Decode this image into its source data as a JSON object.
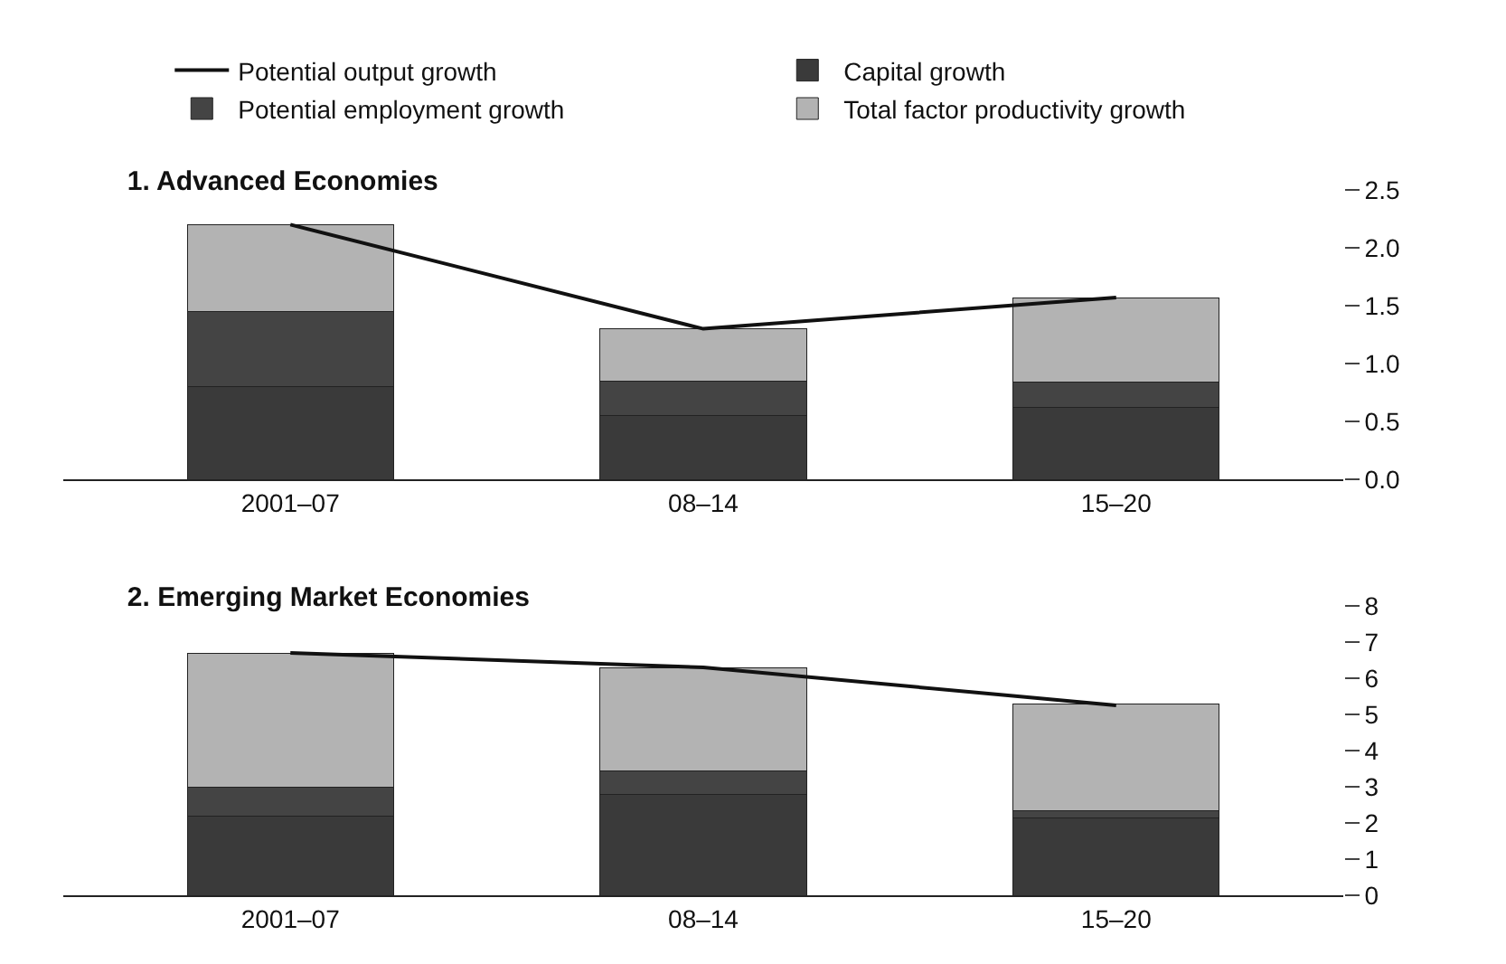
{
  "chart_data": [
    {
      "type": "bar",
      "title": "1. Advanced Economies",
      "stacked": true,
      "legend": "top",
      "categories": [
        "2001–07",
        "08–14",
        "15–20"
      ],
      "ylim": [
        0,
        2.5
      ],
      "yticks": [
        {
          "value": 0,
          "label": "0.0"
        },
        0.5,
        {
          "value": 1,
          "label": "1.0"
        },
        1.5,
        {
          "value": 2,
          "label": "2.0"
        },
        2.5
      ],
      "series": [
        {
          "name": "Potential output growth",
          "type": "line",
          "color": "#111111",
          "values": [
            2.2,
            1.3,
            1.57
          ]
        },
        {
          "name": "Capital growth",
          "color": "#3a3a3a",
          "values": [
            0.8,
            0.55,
            0.62
          ]
        },
        {
          "name": "Potential employment growth",
          "color": "#444444",
          "values": [
            0.65,
            0.3,
            0.22
          ]
        },
        {
          "name": "Total factor productivity growth",
          "color": "#b3b3b3",
          "values": [
            0.75,
            0.45,
            0.73
          ]
        }
      ]
    },
    {
      "type": "bar",
      "title": "2. Emerging Market Economies",
      "stacked": true,
      "categories": [
        "2001–07",
        "08–14",
        "15–20"
      ],
      "ylim": [
        0,
        8
      ],
      "yticks": [
        0,
        1,
        2,
        3,
        4,
        5,
        6,
        7,
        8
      ],
      "series": [
        {
          "type": "line",
          "color": "#111111",
          "values": [
            6.7,
            6.3,
            5.25
          ]
        },
        {
          "color": "#3a3a3a",
          "values": [
            2.2,
            2.8,
            2.15
          ]
        },
        {
          "color": "#444444",
          "values": [
            0.8,
            0.65,
            0.2
          ]
        },
        {
          "color": "#b3b3b3",
          "values": [
            3.7,
            2.85,
            2.95
          ]
        }
      ]
    }
  ]
}
